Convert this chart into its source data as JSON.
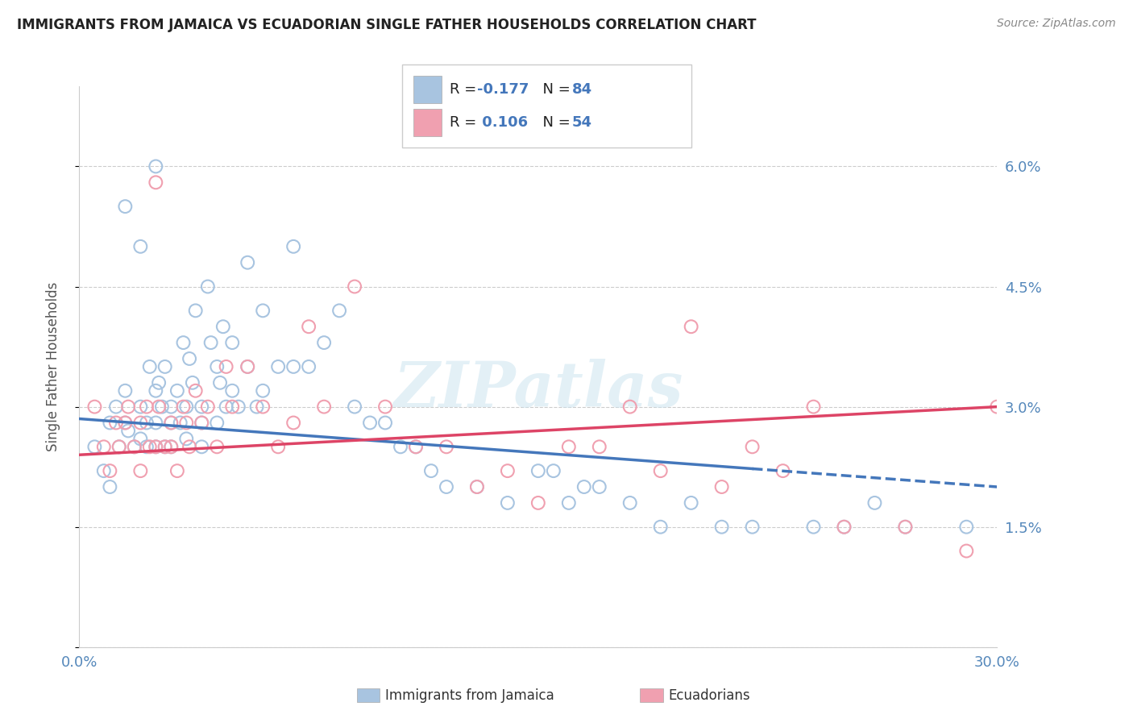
{
  "title": "IMMIGRANTS FROM JAMAICA VS ECUADORIAN SINGLE FATHER HOUSEHOLDS CORRELATION CHART",
  "source": "Source: ZipAtlas.com",
  "ylabel": "Single Father Households",
  "x_ticks": [
    0.0,
    0.05,
    0.1,
    0.15,
    0.2,
    0.25,
    0.3
  ],
  "y_ticks": [
    0.0,
    0.015,
    0.03,
    0.045,
    0.06
  ],
  "y_tick_labels": [
    "",
    "1.5%",
    "3.0%",
    "4.5%",
    "6.0%"
  ],
  "xlim": [
    0.0,
    0.3
  ],
  "ylim": [
    0.0,
    0.07
  ],
  "legend_label1": "Immigrants from Jamaica",
  "legend_label2": "Ecuadorians",
  "color_blue": "#a8c4e0",
  "color_pink": "#f0a0b0",
  "line_blue": "#4477bb",
  "line_pink": "#dd4466",
  "blue_scatter_x": [
    0.005,
    0.008,
    0.01,
    0.01,
    0.012,
    0.013,
    0.015,
    0.015,
    0.016,
    0.018,
    0.02,
    0.02,
    0.022,
    0.022,
    0.023,
    0.025,
    0.025,
    0.025,
    0.026,
    0.027,
    0.028,
    0.028,
    0.03,
    0.03,
    0.03,
    0.032,
    0.033,
    0.034,
    0.035,
    0.035,
    0.036,
    0.037,
    0.038,
    0.04,
    0.04,
    0.04,
    0.042,
    0.043,
    0.045,
    0.045,
    0.046,
    0.047,
    0.048,
    0.05,
    0.05,
    0.052,
    0.055,
    0.055,
    0.058,
    0.06,
    0.06,
    0.065,
    0.07,
    0.07,
    0.075,
    0.08,
    0.085,
    0.09,
    0.095,
    0.1,
    0.105,
    0.11,
    0.115,
    0.12,
    0.13,
    0.14,
    0.15,
    0.155,
    0.16,
    0.165,
    0.17,
    0.18,
    0.19,
    0.2,
    0.21,
    0.22,
    0.24,
    0.25,
    0.26,
    0.27,
    0.29,
    0.015,
    0.02,
    0.025
  ],
  "blue_scatter_y": [
    0.025,
    0.022,
    0.028,
    0.02,
    0.03,
    0.025,
    0.028,
    0.032,
    0.027,
    0.025,
    0.03,
    0.026,
    0.028,
    0.025,
    0.035,
    0.032,
    0.028,
    0.025,
    0.033,
    0.03,
    0.035,
    0.025,
    0.03,
    0.028,
    0.025,
    0.032,
    0.028,
    0.038,
    0.03,
    0.026,
    0.036,
    0.033,
    0.042,
    0.03,
    0.028,
    0.025,
    0.045,
    0.038,
    0.035,
    0.028,
    0.033,
    0.04,
    0.03,
    0.038,
    0.032,
    0.03,
    0.048,
    0.035,
    0.03,
    0.042,
    0.032,
    0.035,
    0.05,
    0.035,
    0.035,
    0.038,
    0.042,
    0.03,
    0.028,
    0.028,
    0.025,
    0.025,
    0.022,
    0.02,
    0.02,
    0.018,
    0.022,
    0.022,
    0.018,
    0.02,
    0.02,
    0.018,
    0.015,
    0.018,
    0.015,
    0.015,
    0.015,
    0.015,
    0.018,
    0.015,
    0.015,
    0.055,
    0.05,
    0.06
  ],
  "pink_scatter_x": [
    0.005,
    0.008,
    0.01,
    0.012,
    0.013,
    0.015,
    0.016,
    0.018,
    0.02,
    0.02,
    0.022,
    0.023,
    0.025,
    0.025,
    0.026,
    0.028,
    0.03,
    0.03,
    0.032,
    0.034,
    0.035,
    0.036,
    0.038,
    0.04,
    0.042,
    0.045,
    0.048,
    0.05,
    0.055,
    0.06,
    0.065,
    0.07,
    0.075,
    0.08,
    0.09,
    0.1,
    0.11,
    0.12,
    0.13,
    0.14,
    0.15,
    0.16,
    0.17,
    0.18,
    0.19,
    0.2,
    0.21,
    0.22,
    0.23,
    0.24,
    0.25,
    0.27,
    0.29,
    0.3
  ],
  "pink_scatter_y": [
    0.03,
    0.025,
    0.022,
    0.028,
    0.025,
    0.028,
    0.03,
    0.025,
    0.028,
    0.022,
    0.03,
    0.025,
    0.058,
    0.025,
    0.03,
    0.025,
    0.028,
    0.025,
    0.022,
    0.03,
    0.028,
    0.025,
    0.032,
    0.028,
    0.03,
    0.025,
    0.035,
    0.03,
    0.035,
    0.03,
    0.025,
    0.028,
    0.04,
    0.03,
    0.045,
    0.03,
    0.025,
    0.025,
    0.02,
    0.022,
    0.018,
    0.025,
    0.025,
    0.03,
    0.022,
    0.04,
    0.02,
    0.025,
    0.022,
    0.03,
    0.015,
    0.015,
    0.012,
    0.03
  ],
  "blue_line_x": [
    0.0,
    0.3
  ],
  "blue_line_y_start": 0.0285,
  "blue_line_y_end": 0.02,
  "blue_line_solid_end": 0.22,
  "pink_line_x": [
    0.0,
    0.3
  ],
  "pink_line_y_start": 0.024,
  "pink_line_y_end": 0.03
}
